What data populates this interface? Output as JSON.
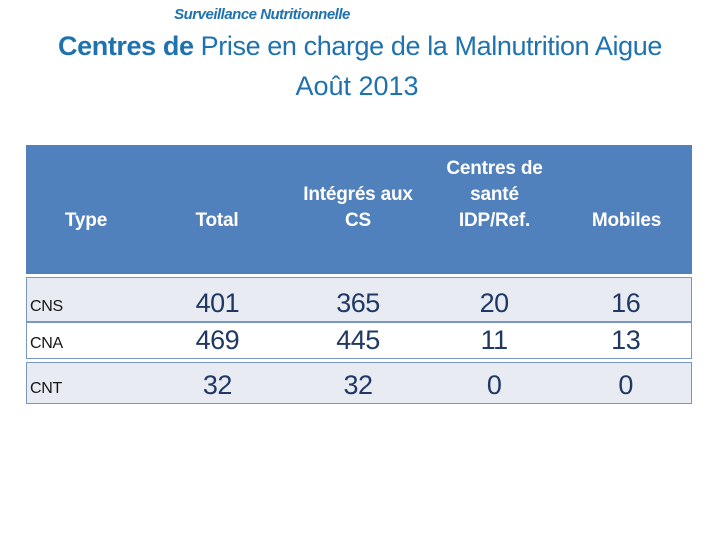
{
  "slide": {
    "title": "Surveillance Nutritionnelle",
    "subtitle_bold": "Centres de ",
    "subtitle_rest": "Prise en charge de la Malnutrition Aigue",
    "subtitle_line2": "Août 2013"
  },
  "table": {
    "columns": [
      {
        "lines": [
          "Type"
        ]
      },
      {
        "lines": [
          "Total"
        ]
      },
      {
        "lines": [
          "Intégrés aux",
          "CS"
        ]
      },
      {
        "lines": [
          "Centres de",
          "santé",
          "IDP/Ref."
        ]
      },
      {
        "lines": [
          "Mobiles"
        ]
      }
    ],
    "rows": [
      {
        "label": "CNS",
        "values": [
          "401",
          "365",
          "20",
          "16"
        ]
      },
      {
        "label": "CNA",
        "values": [
          "469",
          "445",
          "11",
          "13"
        ]
      },
      {
        "label": "CNT",
        "values": [
          "32",
          "32",
          "0",
          "0"
        ]
      }
    ]
  },
  "colors": {
    "title_blue": "#1F72B0",
    "header_fill": "#5081BD",
    "header_text": "#FFFFFF",
    "band_fill": "#E9EBF2",
    "row_white": "#FFFFFF",
    "row_border": "#7897C5",
    "value_text": "#1F3864",
    "label_text": "#151515"
  }
}
